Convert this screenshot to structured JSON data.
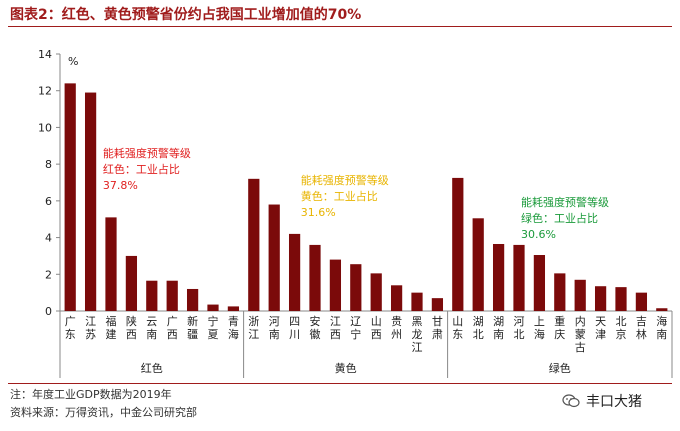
{
  "title": "图表2：红色、黄色预警省份约占我国工业增加值的70%",
  "notes": {
    "line1": "注：年度工业GDP数据为2019年",
    "line2": "资料来源：万得资讯，中金公司研究部"
  },
  "brand": {
    "label": "丰口大猪",
    "icon": "wechat-icon"
  },
  "colors": {
    "bar": "#7b0a0a",
    "red": "#e02020",
    "yellow": "#e8b400",
    "green": "#1a9a3a"
  },
  "chart_data": {
    "type": "bar",
    "unit": "%",
    "ylim": [
      0,
      14
    ],
    "yticks": [
      "0",
      "2",
      "4",
      "6",
      "8",
      "10",
      "12",
      "14"
    ],
    "grid": false,
    "groups": [
      {
        "name": "红色",
        "annotation": [
          "能耗强度预警等级",
          "红色：工业占比",
          "37.8%"
        ],
        "color_key": "red",
        "categories": [
          "广东",
          "江苏",
          "福建",
          "陕西",
          "云南",
          "广西",
          "新疆",
          "宁夏",
          "青海"
        ],
        "values": [
          12.4,
          11.9,
          5.1,
          3.0,
          1.65,
          1.65,
          1.2,
          0.35,
          0.25
        ]
      },
      {
        "name": "黄色",
        "annotation": [
          "能耗强度预警等级",
          "黄色：工业占比",
          "31.6%"
        ],
        "color_key": "yellow",
        "categories": [
          "浙江",
          "河南",
          "四川",
          "安徽",
          "江西",
          "辽宁",
          "山西",
          "贵州",
          "黑龙江",
          "甘肃"
        ],
        "values": [
          7.2,
          5.8,
          4.2,
          3.6,
          2.8,
          2.55,
          2.05,
          1.4,
          1.0,
          0.7
        ]
      },
      {
        "name": "绿色",
        "annotation": [
          "能耗强度预警等级",
          "绿色：工业占比",
          "30.6%"
        ],
        "color_key": "green",
        "categories": [
          "山东",
          "湖北",
          "湖南",
          "河北",
          "上海",
          "重庆",
          "内蒙古",
          "天津",
          "北京",
          "吉林",
          "海南"
        ],
        "values": [
          7.25,
          5.05,
          3.65,
          3.6,
          3.05,
          2.05,
          1.7,
          1.35,
          1.3,
          1.0,
          0.15
        ]
      }
    ]
  }
}
